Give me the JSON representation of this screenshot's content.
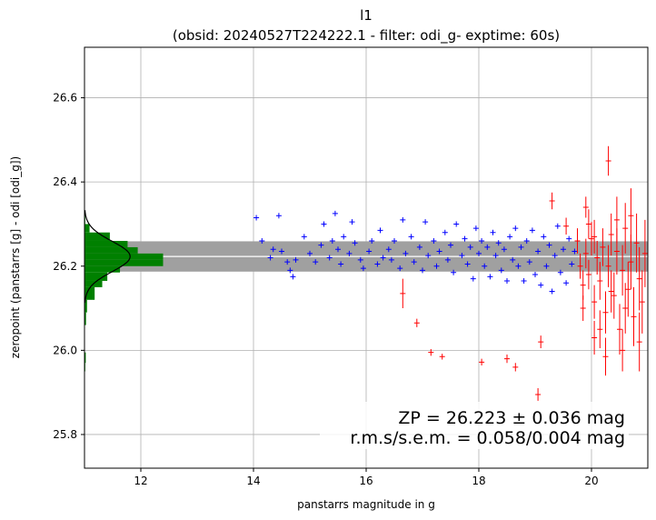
{
  "chart_data": {
    "type": "scatter",
    "title": "l1",
    "subtitle": "(obsid: 20240527T224222.1 - filter: odi_g- exptime: 60s)",
    "xlabel": "panstarrs magnitude in g",
    "ylabel": "zeropoint (panstarrs [g] - odi [odi_g])",
    "xlim": [
      11.0,
      21.0
    ],
    "ylim": [
      25.72,
      26.72
    ],
    "xticks": [
      12,
      14,
      16,
      18,
      20
    ],
    "yticks": [
      25.8,
      26.0,
      26.2,
      26.4,
      26.6
    ],
    "grid": true,
    "zeropoint": {
      "value": 26.223,
      "band_low": 26.187,
      "band_high": 26.259,
      "band_color": "#a0a0a0",
      "line_color": "#ffffff",
      "x_range": [
        11.0,
        21.0
      ]
    },
    "annotations": [
      "ZP = 26.223 ± 0.036 mag",
      "r.m.s/s.e.m. = 0.058/0.004 mag"
    ],
    "series": [
      {
        "color": "#0000ff",
        "marker": "plus",
        "points": [
          [
            14.05,
            26.315
          ],
          [
            14.15,
            26.26
          ],
          [
            14.3,
            26.22
          ],
          [
            14.35,
            26.24
          ],
          [
            14.45,
            26.32
          ],
          [
            14.5,
            26.235
          ],
          [
            14.6,
            26.21
          ],
          [
            14.65,
            26.19
          ],
          [
            14.7,
            26.175
          ],
          [
            14.75,
            26.215
          ],
          [
            14.9,
            26.27
          ],
          [
            15.0,
            26.23
          ],
          [
            15.1,
            26.21
          ],
          [
            15.2,
            26.25
          ],
          [
            15.25,
            26.3
          ],
          [
            15.35,
            26.22
          ],
          [
            15.4,
            26.26
          ],
          [
            15.45,
            26.325
          ],
          [
            15.5,
            26.24
          ],
          [
            15.55,
            26.205
          ],
          [
            15.6,
            26.27
          ],
          [
            15.7,
            26.23
          ],
          [
            15.75,
            26.305
          ],
          [
            15.8,
            26.255
          ],
          [
            15.9,
            26.215
          ],
          [
            15.95,
            26.195
          ],
          [
            16.05,
            26.235
          ],
          [
            16.1,
            26.26
          ],
          [
            16.2,
            26.205
          ],
          [
            16.25,
            26.285
          ],
          [
            16.3,
            26.22
          ],
          [
            16.4,
            26.24
          ],
          [
            16.45,
            26.215
          ],
          [
            16.5,
            26.26
          ],
          [
            16.6,
            26.195
          ],
          [
            16.65,
            26.31
          ],
          [
            16.7,
            26.23
          ],
          [
            16.8,
            26.27
          ],
          [
            16.85,
            26.21
          ],
          [
            16.95,
            26.245
          ],
          [
            17.0,
            26.19
          ],
          [
            17.05,
            26.305
          ],
          [
            17.1,
            26.225
          ],
          [
            17.2,
            26.26
          ],
          [
            17.25,
            26.2
          ],
          [
            17.3,
            26.235
          ],
          [
            17.4,
            26.28
          ],
          [
            17.45,
            26.215
          ],
          [
            17.5,
            26.25
          ],
          [
            17.55,
            26.185
          ],
          [
            17.6,
            26.3
          ],
          [
            17.7,
            26.225
          ],
          [
            17.75,
            26.265
          ],
          [
            17.8,
            26.205
          ],
          [
            17.85,
            26.245
          ],
          [
            17.9,
            26.17
          ],
          [
            17.95,
            26.29
          ],
          [
            18.0,
            26.23
          ],
          [
            18.05,
            26.26
          ],
          [
            18.1,
            26.2
          ],
          [
            18.15,
            26.245
          ],
          [
            18.2,
            26.175
          ],
          [
            18.25,
            26.28
          ],
          [
            18.3,
            26.225
          ],
          [
            18.35,
            26.255
          ],
          [
            18.4,
            26.19
          ],
          [
            18.45,
            26.24
          ],
          [
            18.5,
            26.165
          ],
          [
            18.55,
            26.27
          ],
          [
            18.6,
            26.215
          ],
          [
            18.65,
            26.29
          ],
          [
            18.7,
            26.2
          ],
          [
            18.75,
            26.245
          ],
          [
            18.8,
            26.165
          ],
          [
            18.85,
            26.26
          ],
          [
            18.9,
            26.21
          ],
          [
            18.95,
            26.285
          ],
          [
            19.0,
            26.18
          ],
          [
            19.05,
            26.235
          ],
          [
            19.1,
            26.155
          ],
          [
            19.15,
            26.27
          ],
          [
            19.2,
            26.2
          ],
          [
            19.25,
            26.25
          ],
          [
            19.3,
            26.14
          ],
          [
            19.35,
            26.225
          ],
          [
            19.4,
            26.295
          ],
          [
            19.45,
            26.185
          ],
          [
            19.5,
            26.24
          ],
          [
            19.55,
            26.16
          ],
          [
            19.6,
            26.265
          ],
          [
            19.65,
            26.205
          ],
          [
            19.7,
            26.235
          ]
        ]
      },
      {
        "color": "#ff0000",
        "marker": "plus-errorbar",
        "points": [
          [
            16.65,
            26.135,
            0.035
          ],
          [
            16.9,
            26.065,
            0.01
          ],
          [
            17.15,
            25.995,
            0.008
          ],
          [
            17.35,
            25.985,
            0.007
          ],
          [
            18.05,
            25.972,
            0.008
          ],
          [
            18.5,
            25.98,
            0.01
          ],
          [
            18.65,
            25.96,
            0.01
          ],
          [
            19.05,
            25.895,
            0.015
          ],
          [
            19.1,
            26.02,
            0.015
          ],
          [
            19.3,
            26.355,
            0.02
          ],
          [
            19.55,
            26.295,
            0.02
          ],
          [
            19.9,
            26.34,
            0.025
          ],
          [
            20.3,
            26.45,
            0.035
          ],
          [
            19.75,
            26.26,
            0.03
          ],
          [
            19.8,
            26.2,
            0.03
          ],
          [
            19.85,
            26.155,
            0.035
          ],
          [
            19.9,
            26.23,
            0.035
          ],
          [
            19.95,
            26.18,
            0.035
          ],
          [
            20.0,
            26.265,
            0.04
          ],
          [
            20.05,
            26.115,
            0.04
          ],
          [
            20.1,
            26.22,
            0.04
          ],
          [
            20.15,
            26.165,
            0.045
          ],
          [
            20.2,
            26.245,
            0.045
          ],
          [
            20.25,
            26.09,
            0.05
          ],
          [
            20.3,
            26.2,
            0.05
          ],
          [
            20.35,
            26.275,
            0.05
          ],
          [
            20.4,
            26.13,
            0.055
          ],
          [
            20.45,
            26.235,
            0.055
          ],
          [
            20.5,
            26.05,
            0.06
          ],
          [
            20.55,
            26.19,
            0.06
          ],
          [
            20.6,
            26.29,
            0.06
          ],
          [
            20.65,
            26.145,
            0.065
          ],
          [
            20.7,
            26.21,
            0.065
          ],
          [
            20.75,
            26.08,
            0.07
          ],
          [
            20.8,
            26.255,
            0.07
          ],
          [
            20.85,
            26.17,
            0.075
          ],
          [
            20.9,
            26.115,
            0.075
          ],
          [
            20.95,
            26.23,
            0.08
          ],
          [
            20.05,
            26.03,
            0.04
          ],
          [
            20.25,
            25.985,
            0.045
          ],
          [
            20.55,
            26.0,
            0.05
          ],
          [
            19.95,
            26.3,
            0.035
          ],
          [
            20.45,
            26.31,
            0.055
          ],
          [
            20.15,
            26.05,
            0.045
          ],
          [
            20.7,
            26.32,
            0.065
          ],
          [
            20.85,
            26.02,
            0.07
          ],
          [
            20.6,
            26.1,
            0.06
          ],
          [
            20.35,
            26.14,
            0.05
          ],
          [
            19.85,
            26.1,
            0.03
          ],
          [
            20.05,
            26.27,
            0.04
          ]
        ]
      }
    ],
    "histogram": {
      "color": "#008000",
      "orientation": "horizontal",
      "bins": [
        {
          "y0": 26.215,
          "y1": 26.23,
          "count": 31
        },
        {
          "y0": 26.2,
          "y1": 26.215,
          "count": 31
        },
        {
          "y0": 26.23,
          "y1": 26.245,
          "count": 21
        },
        {
          "y0": 26.245,
          "y1": 26.26,
          "count": 17
        },
        {
          "y0": 26.185,
          "y1": 26.2,
          "count": 14
        },
        {
          "y0": 26.26,
          "y1": 26.28,
          "count": 10
        },
        {
          "y0": 26.28,
          "y1": 26.3,
          "count": 2
        },
        {
          "y0": 26.165,
          "y1": 26.185,
          "count": 9
        },
        {
          "y0": 26.15,
          "y1": 26.165,
          "count": 7
        },
        {
          "y0": 26.12,
          "y1": 26.15,
          "count": 4
        },
        {
          "y0": 26.09,
          "y1": 26.12,
          "count": 1
        },
        {
          "y0": 26.06,
          "y1": 26.09,
          "count": 0.6
        },
        {
          "y0": 25.97,
          "y1": 25.995,
          "count": 0.5
        },
        {
          "y0": 25.95,
          "y1": 25.97,
          "count": 0.3
        },
        {
          "y0": 26.3,
          "y1": 26.33,
          "count": 0.3
        }
      ],
      "gaussian": {
        "mu": 26.223,
        "sigma": 0.036,
        "peak": 18
      }
    }
  }
}
